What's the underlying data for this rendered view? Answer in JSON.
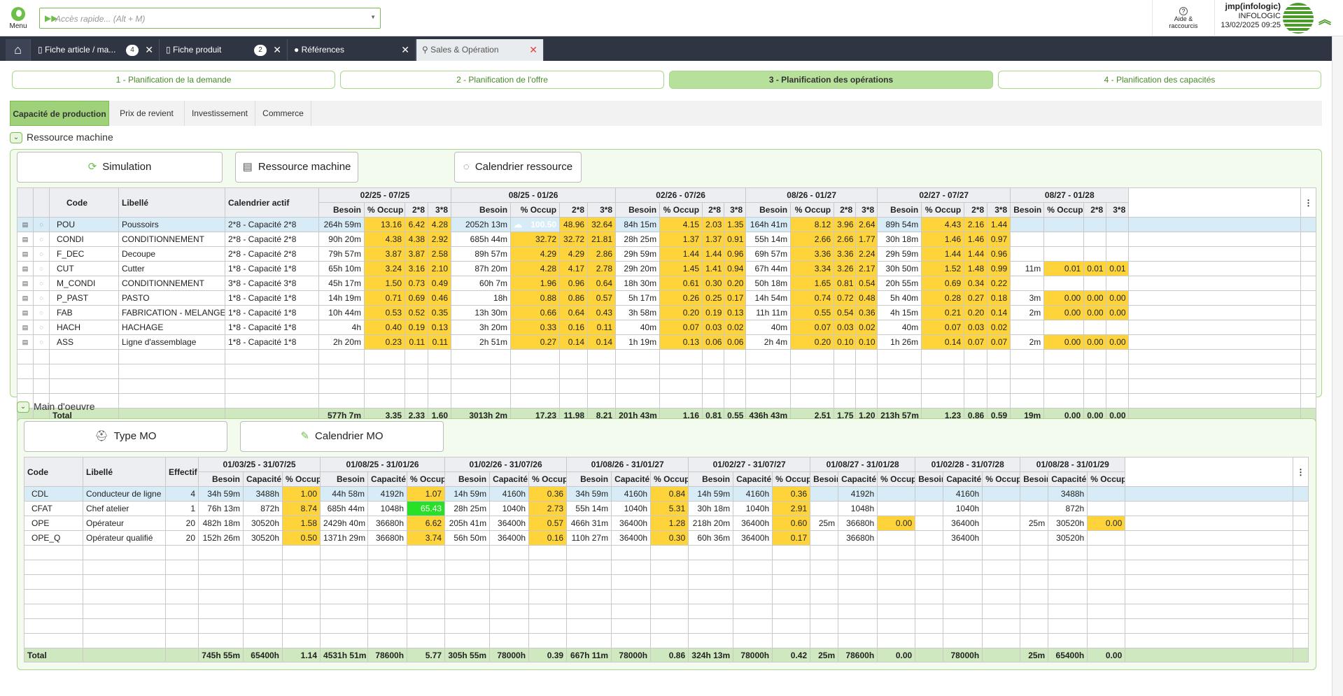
{
  "header": {
    "menu_label": "Menu",
    "quick_access_placeholder": "Accès rapide... (Alt + M)",
    "help_line1": "Aide &",
    "help_line2": "raccourcis",
    "user_name": "jmp(infologic)",
    "company": "INFOLOGIC",
    "datetime": "13/02/2025 09:25"
  },
  "tabs": [
    {
      "label": "Fiche article / ma...",
      "count": "4"
    },
    {
      "label": "Fiche produit",
      "count": "2"
    },
    {
      "label": "Références"
    },
    {
      "label": "Sales & Opération"
    }
  ],
  "steps": [
    "1 - Planification de la demande",
    "2 - Planification de l'offre",
    "3 - Planification des opérations",
    "4 - Planification des capacités"
  ],
  "subtabs": [
    "Capacité de production",
    "Prix de revient",
    "Investissement",
    "Commerce"
  ],
  "machine": {
    "title": "Ressource machine",
    "buttons": {
      "simulation": "Simulation",
      "ressource": "Ressource machine",
      "calendrier": "Calendrier ressource"
    },
    "cols": {
      "code": "Code",
      "libelle": "Libellé",
      "cal": "Calendrier actif",
      "besoin": "Besoin",
      "occup": "% Occup",
      "s2": "2*8",
      "s3": "3*8"
    },
    "periods": [
      "02/25 - 07/25",
      "08/25 - 01/26",
      "02/26 - 07/26",
      "08/26 - 01/27",
      "02/27 - 07/27",
      "08/27 - 01/28"
    ],
    "rows": [
      {
        "code": "POU",
        "lib": "Poussoirs",
        "cal": "2*8 - Capacité 2*8",
        "p": [
          [
            "264h 59m",
            "13.16",
            "6.42",
            "4.28"
          ],
          [
            "2052h 13m",
            "100.50",
            "48.96",
            "32.64"
          ],
          [
            "84h 15m",
            "4.15",
            "2.03",
            "1.35"
          ],
          [
            "164h 41m",
            "8.12",
            "3.96",
            "2.64"
          ],
          [
            "89h 54m",
            "4.43",
            "2.16",
            "1.44"
          ],
          [
            "",
            "",
            "",
            ""
          ]
        ]
      },
      {
        "code": "CONDI",
        "lib": "CONDITIONNEMENT",
        "cal": "2*8 - Capacité 2*8",
        "p": [
          [
            "90h 20m",
            "4.38",
            "4.38",
            "2.92"
          ],
          [
            "685h 44m",
            "32.72",
            "32.72",
            "21.81"
          ],
          [
            "28h 25m",
            "1.37",
            "1.37",
            "0.91"
          ],
          [
            "55h 14m",
            "2.66",
            "2.66",
            "1.77"
          ],
          [
            "30h 18m",
            "1.46",
            "1.46",
            "0.97"
          ],
          [
            "",
            "",
            "",
            ""
          ]
        ]
      },
      {
        "code": "F_DEC",
        "lib": "Decoupe",
        "cal": "2*8 - Capacité 2*8",
        "p": [
          [
            "79h 57m",
            "3.87",
            "3.87",
            "2.58"
          ],
          [
            "89h 57m",
            "4.29",
            "4.29",
            "2.86"
          ],
          [
            "29h 59m",
            "1.44",
            "1.44",
            "0.96"
          ],
          [
            "69h 57m",
            "3.36",
            "3.36",
            "2.24"
          ],
          [
            "29h 59m",
            "1.44",
            "1.44",
            "0.96"
          ],
          [
            "",
            "",
            "",
            ""
          ]
        ]
      },
      {
        "code": "CUT",
        "lib": "Cutter",
        "cal": "1*8 - Capacité 1*8",
        "p": [
          [
            "65h 10m",
            "3.24",
            "3.16",
            "2.10"
          ],
          [
            "87h 20m",
            "4.28",
            "4.17",
            "2.78"
          ],
          [
            "29h 20m",
            "1.45",
            "1.41",
            "0.94"
          ],
          [
            "67h 44m",
            "3.34",
            "3.26",
            "2.17"
          ],
          [
            "30h 50m",
            "1.52",
            "1.48",
            "0.99"
          ],
          [
            "11m",
            "0.01",
            "0.01",
            "0.01"
          ]
        ]
      },
      {
        "code": "M_CONDI",
        "lib": "CONDITIONNEMENT",
        "cal": "3*8 - Capacité 3*8",
        "p": [
          [
            "45h 17m",
            "1.50",
            "0.73",
            "0.49"
          ],
          [
            "60h 7m",
            "1.96",
            "0.96",
            "0.64"
          ],
          [
            "18h 30m",
            "0.61",
            "0.30",
            "0.20"
          ],
          [
            "50h 18m",
            "1.65",
            "0.81",
            "0.54"
          ],
          [
            "20h 55m",
            "0.69",
            "0.34",
            "0.22"
          ],
          [
            "",
            "",
            "",
            ""
          ]
        ]
      },
      {
        "code": "P_PAST",
        "lib": "PASTO",
        "cal": "1*8 - Capacité 1*8",
        "p": [
          [
            "14h 19m",
            "0.71",
            "0.69",
            "0.46"
          ],
          [
            "18h",
            "0.88",
            "0.86",
            "0.57"
          ],
          [
            "5h 17m",
            "0.26",
            "0.25",
            "0.17"
          ],
          [
            "14h 54m",
            "0.74",
            "0.72",
            "0.48"
          ],
          [
            "5h 40m",
            "0.28",
            "0.27",
            "0.18"
          ],
          [
            "3m",
            "0.00",
            "0.00",
            "0.00"
          ]
        ]
      },
      {
        "code": "FAB",
        "lib": "FABRICATION - MELANGE",
        "cal": "1*8 - Capacité 1*8",
        "p": [
          [
            "10h 44m",
            "0.53",
            "0.52",
            "0.35"
          ],
          [
            "13h 30m",
            "0.66",
            "0.64",
            "0.43"
          ],
          [
            "3h 58m",
            "0.20",
            "0.19",
            "0.13"
          ],
          [
            "11h 11m",
            "0.55",
            "0.54",
            "0.36"
          ],
          [
            "4h 15m",
            "0.21",
            "0.20",
            "0.14"
          ],
          [
            "2m",
            "0.00",
            "0.00",
            "0.00"
          ]
        ]
      },
      {
        "code": "HACH",
        "lib": "HACHAGE",
        "cal": "1*8 - Capacité 1*8",
        "p": [
          [
            "4h",
            "0.40",
            "0.19",
            "0.13"
          ],
          [
            "3h 20m",
            "0.33",
            "0.16",
            "0.11"
          ],
          [
            "40m",
            "0.07",
            "0.03",
            "0.02"
          ],
          [
            "40m",
            "0.07",
            "0.03",
            "0.02"
          ],
          [
            "40m",
            "0.07",
            "0.03",
            "0.02"
          ],
          [
            "",
            "",
            "",
            ""
          ]
        ]
      },
      {
        "code": "ASS",
        "lib": "Ligne d'assemblage",
        "cal": "1*8 - Capacité 1*8",
        "p": [
          [
            "2h 20m",
            "0.23",
            "0.11",
            "0.11"
          ],
          [
            "2h 51m",
            "0.27",
            "0.14",
            "0.14"
          ],
          [
            "1h 19m",
            "0.13",
            "0.06",
            "0.06"
          ],
          [
            "2h 4m",
            "0.20",
            "0.10",
            "0.10"
          ],
          [
            "1h 26m",
            "0.14",
            "0.07",
            "0.07"
          ],
          [
            "2m",
            "0.00",
            "0.00",
            "0.00"
          ]
        ]
      }
    ],
    "total_label": "Total",
    "totals": [
      [
        "577h 7m",
        "3.35",
        "2.33",
        "1.60"
      ],
      [
        "3013h 2m",
        "17.23",
        "11.98",
        "8.21"
      ],
      [
        "201h 43m",
        "1.16",
        "0.81",
        "0.55"
      ],
      [
        "436h 43m",
        "2.51",
        "1.75",
        "1.20"
      ],
      [
        "213h 57m",
        "1.23",
        "0.86",
        "0.59"
      ],
      [
        "19m",
        "0.00",
        "0.00",
        "0.00"
      ]
    ]
  },
  "mo": {
    "title": "Main d'oeuvre",
    "buttons": {
      "type": "Type MO",
      "cal": "Calendrier MO"
    },
    "cols": {
      "code": "Code",
      "libelle": "Libellé",
      "effectif": "Effectif",
      "besoin": "Besoin",
      "capacite": "Capacité",
      "occup": "% Occup"
    },
    "periods": [
      "01/03/25 - 31/07/25",
      "01/08/25 - 31/01/26",
      "01/02/26 - 31/07/26",
      "01/08/26 - 31/01/27",
      "01/02/27 - 31/07/27",
      "01/08/27 - 31/01/28",
      "01/02/28 - 31/07/28",
      "01/08/28 - 31/01/29"
    ],
    "rows": [
      {
        "code": "CDL",
        "lib": "Conducteur de ligne",
        "eff": "4",
        "p": [
          [
            "34h 59m",
            "3488h",
            "1.00"
          ],
          [
            "44h 58m",
            "4192h",
            "1.07"
          ],
          [
            "14h 59m",
            "4160h",
            "0.36"
          ],
          [
            "34h 59m",
            "4160h",
            "0.84"
          ],
          [
            "14h 59m",
            "4160h",
            "0.36"
          ],
          [
            "",
            "4192h",
            ""
          ],
          [
            "",
            "4160h",
            ""
          ],
          [
            "",
            "3488h",
            ""
          ]
        ]
      },
      {
        "code": "CFAT",
        "lib": "Chef atelier",
        "eff": "1",
        "p": [
          [
            "76h 13m",
            "872h",
            "8.74"
          ],
          [
            "685h 44m",
            "1048h",
            "65.43"
          ],
          [
            "28h 25m",
            "1040h",
            "2.73"
          ],
          [
            "55h 14m",
            "1040h",
            "5.31"
          ],
          [
            "30h 18m",
            "1040h",
            "2.91"
          ],
          [
            "",
            "1048h",
            ""
          ],
          [
            "",
            "1040h",
            ""
          ],
          [
            "",
            "872h",
            ""
          ]
        ]
      },
      {
        "code": "OPE",
        "lib": "Opérateur",
        "eff": "20",
        "p": [
          [
            "482h 18m",
            "30520h",
            "1.58"
          ],
          [
            "2429h 40m",
            "36680h",
            "6.62"
          ],
          [
            "205h 41m",
            "36400h",
            "0.57"
          ],
          [
            "466h 31m",
            "36400h",
            "1.28"
          ],
          [
            "218h 20m",
            "36400h",
            "0.60"
          ],
          [
            "25m",
            "36680h",
            "0.00"
          ],
          [
            "",
            "36400h",
            ""
          ],
          [
            "25m",
            "30520h",
            "0.00"
          ]
        ]
      },
      {
        "code": "OPE_Q",
        "lib": "Opérateur qualifié",
        "eff": "20",
        "p": [
          [
            "152h 26m",
            "30520h",
            "0.50"
          ],
          [
            "1371h 29m",
            "36680h",
            "3.74"
          ],
          [
            "56h 50m",
            "36400h",
            "0.16"
          ],
          [
            "110h 27m",
            "36400h",
            "0.30"
          ],
          [
            "60h 36m",
            "36400h",
            "0.17"
          ],
          [
            "",
            "36680h",
            ""
          ],
          [
            "",
            "36400h",
            ""
          ],
          [
            "",
            "30520h",
            ""
          ]
        ]
      }
    ],
    "total_label": "Total",
    "totals": [
      [
        "745h 55m",
        "65400h",
        "1.14"
      ],
      [
        "4531h 51m",
        "78600h",
        "5.77"
      ],
      [
        "305h 55m",
        "78000h",
        "0.39"
      ],
      [
        "667h 11m",
        "78000h",
        "0.86"
      ],
      [
        "324h 13m",
        "78000h",
        "0.42"
      ],
      [
        "25m",
        "78600h",
        "0.00"
      ],
      [
        "",
        "78000h",
        ""
      ],
      [
        "25m",
        "65400h",
        "0.00"
      ]
    ]
  },
  "colors": {
    "accent": "#6cc04a",
    "tabbar": "#2f3542",
    "occupancy": "#ffd43b",
    "over": "#e03040",
    "high": "#28e028"
  }
}
